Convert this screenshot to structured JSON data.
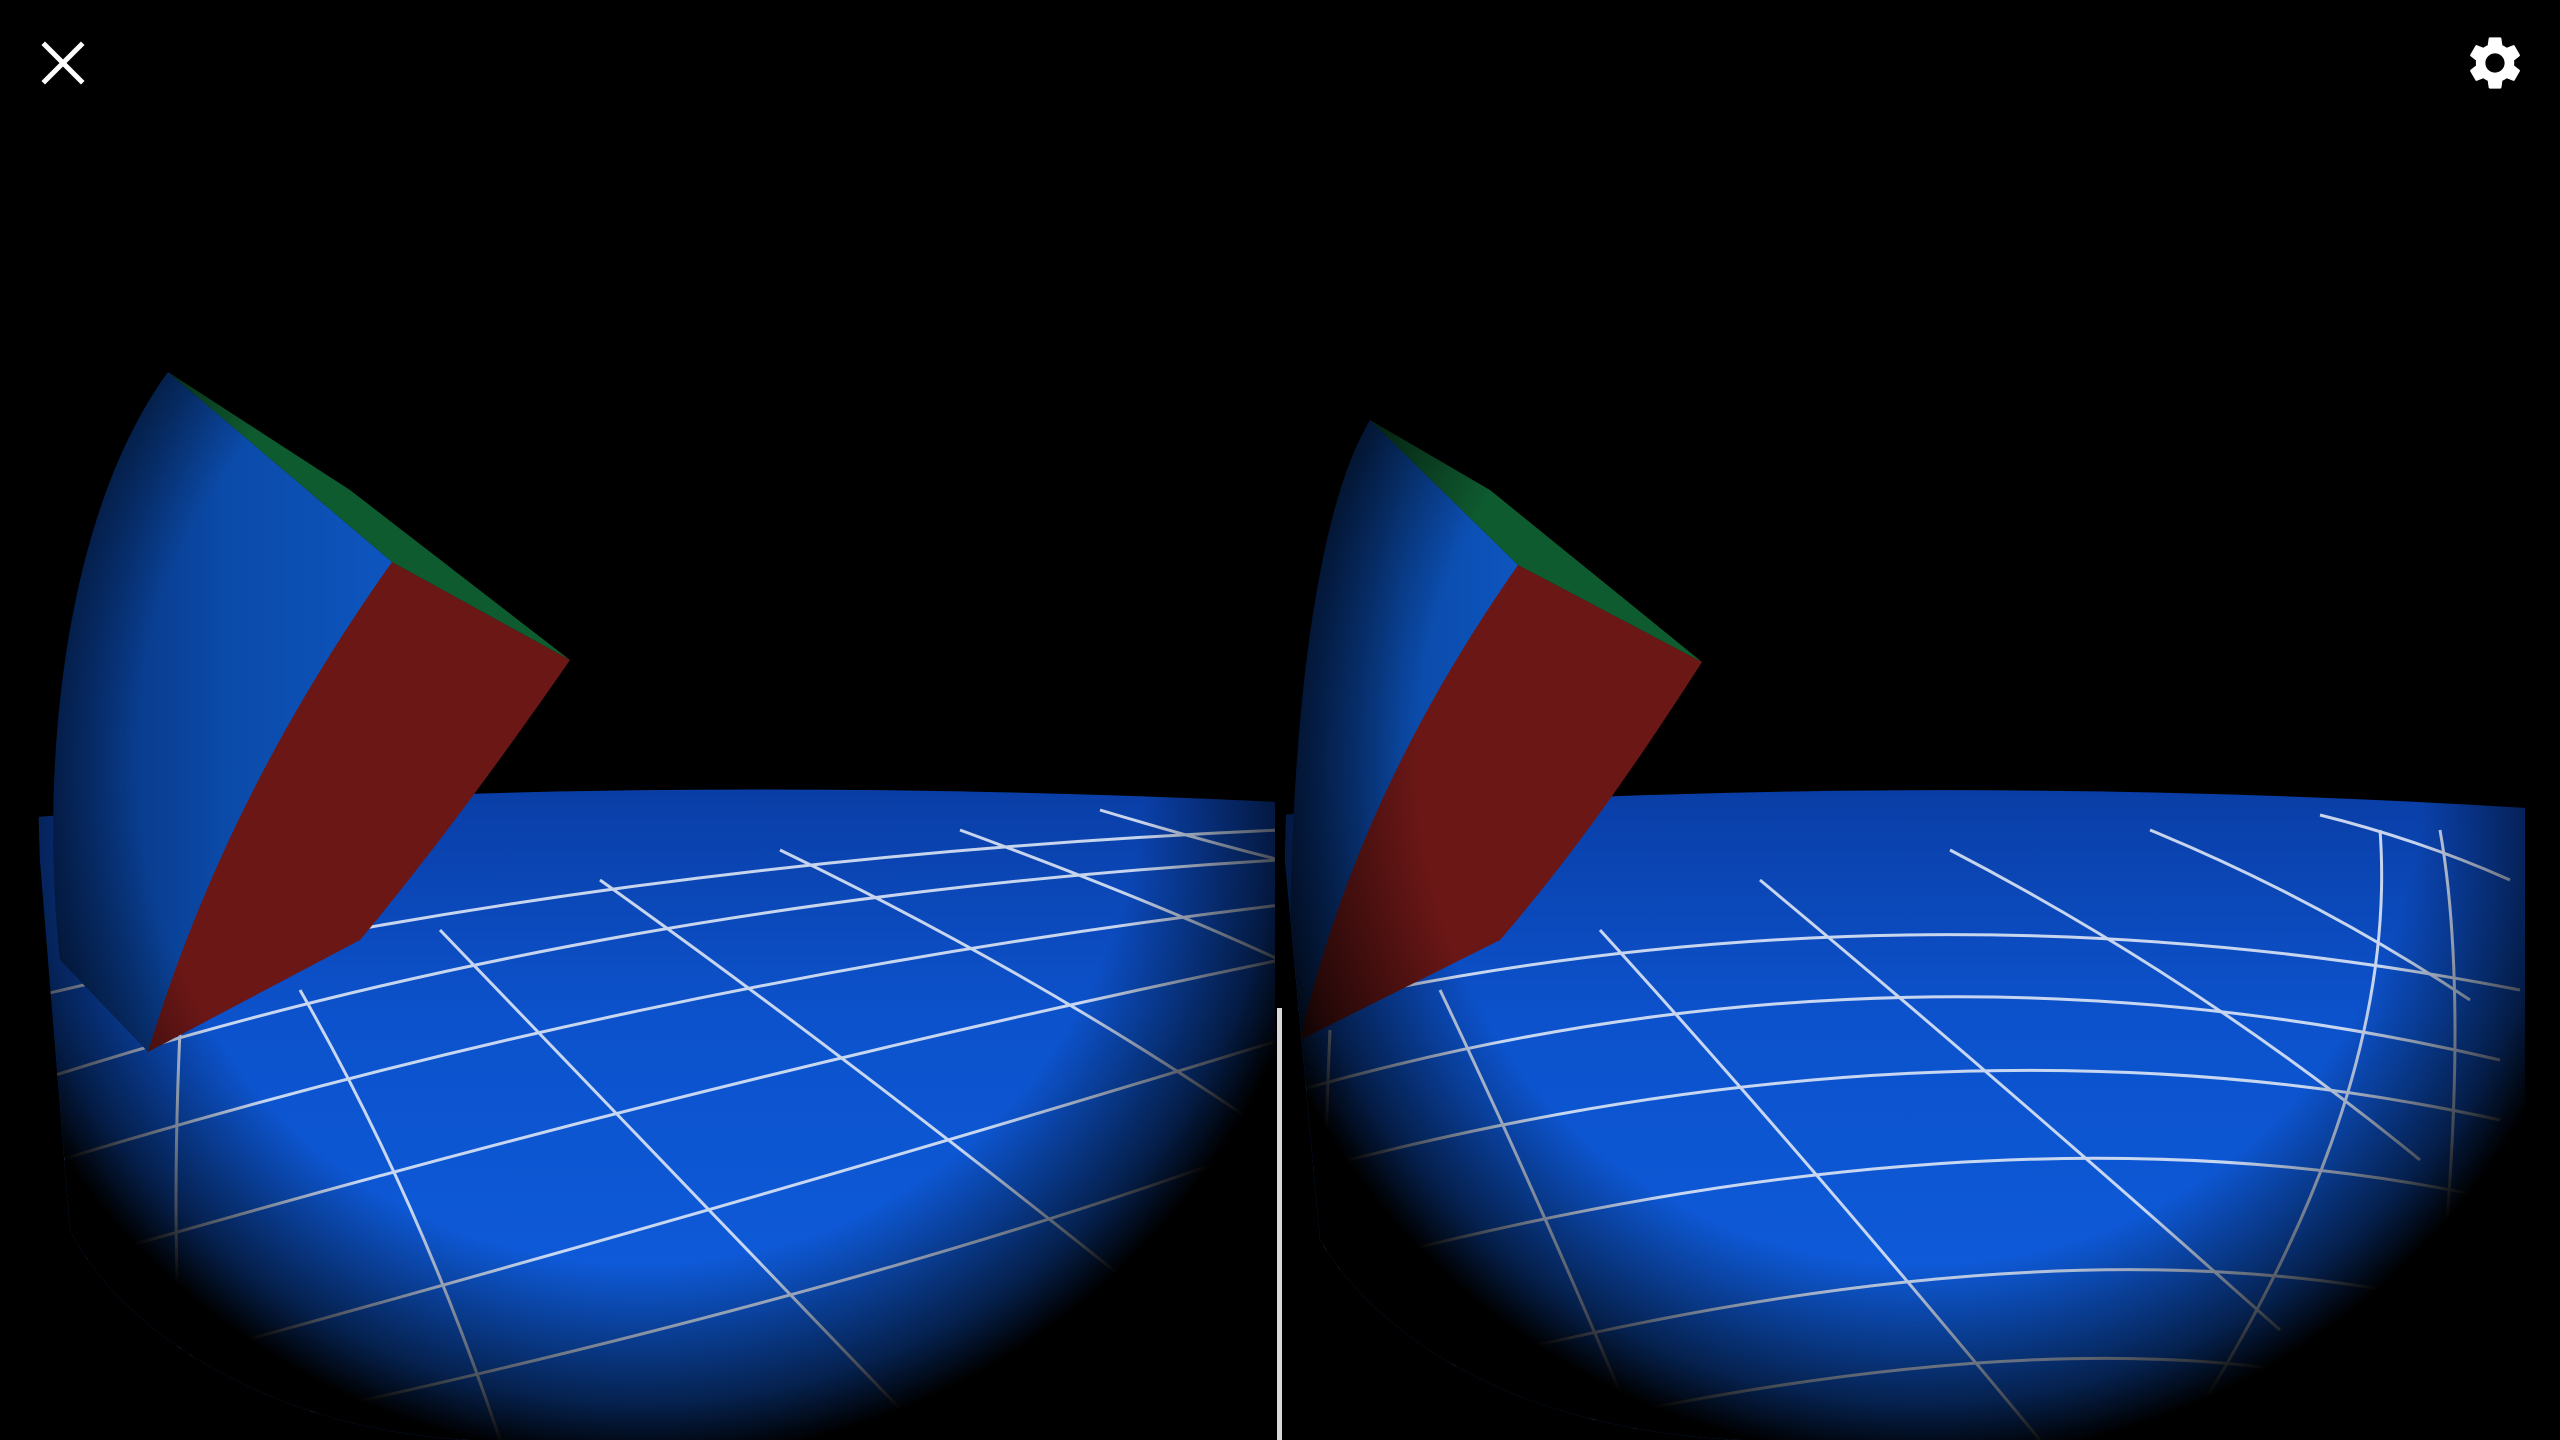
{
  "app": {
    "mode": "stereo-vr-view"
  },
  "toolbar": {
    "close_icon": "close-icon",
    "settings_icon": "gear-icon"
  },
  "scene": {
    "background_color": "#000000",
    "floor_color": "#0c57d8",
    "floor_dark_color": "#0a3ea6",
    "grid_color": "#e8eef8",
    "cube_blue": "#0b4aa8",
    "cube_red": "#6a1716",
    "cube_green": "#0f5b30"
  },
  "viewports": [
    {
      "name": "left-eye"
    },
    {
      "name": "right-eye"
    }
  ]
}
